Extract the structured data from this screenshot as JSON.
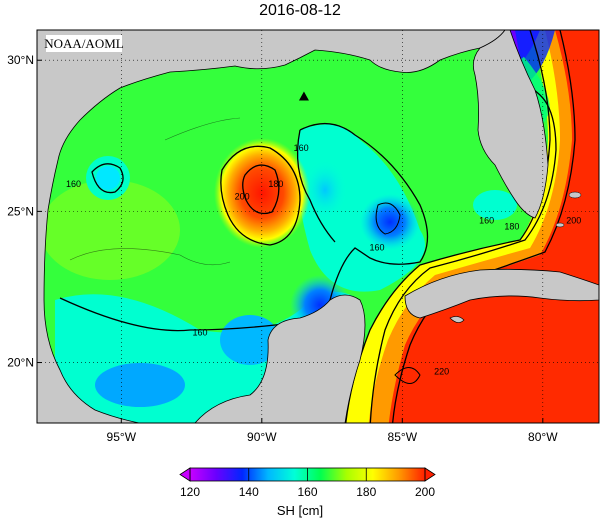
{
  "title": "2016-08-12",
  "credit": "NOAA/AOML",
  "lat_ticks": [
    {
      "value": 30,
      "label": "30°N"
    },
    {
      "value": 25,
      "label": "25°N"
    },
    {
      "value": 20,
      "label": "20°N"
    }
  ],
  "lon_ticks": [
    {
      "value": -95,
      "label": "95°W"
    },
    {
      "value": -90,
      "label": "90°W"
    },
    {
      "value": -85,
      "label": "85°W"
    },
    {
      "value": -80,
      "label": "80°W"
    }
  ],
  "extent": {
    "lon": [
      -98,
      -78
    ],
    "lat": [
      18,
      31
    ]
  },
  "contour_labels": [
    {
      "text": "160",
      "lon": -96.7,
      "lat": 25.8
    },
    {
      "text": "160",
      "lon": -88.6,
      "lat": 27.0
    },
    {
      "text": "180",
      "lon": -89.5,
      "lat": 25.8
    },
    {
      "text": "200",
      "lon": -90.7,
      "lat": 25.4
    },
    {
      "text": "160",
      "lon": -85.9,
      "lat": 23.7
    },
    {
      "text": "160",
      "lon": -92.2,
      "lat": 20.9
    },
    {
      "text": "160",
      "lon": -82.0,
      "lat": 24.6
    },
    {
      "text": "180",
      "lon": -81.1,
      "lat": 24.4
    },
    {
      "text": "200",
      "lon": -78.9,
      "lat": 24.6
    },
    {
      "text": "220",
      "lon": -83.6,
      "lat": 19.6
    }
  ],
  "colorbar": {
    "label": "SH [cm]",
    "min": 120,
    "max": 200,
    "tick_labels": [
      "120",
      "140",
      "160",
      "180",
      "200"
    ],
    "stops": [
      "#c800ff",
      "#6a00ff",
      "#0026ff",
      "#00b8ff",
      "#00ffd8",
      "#00ff50",
      "#a8ff00",
      "#ffff00",
      "#ff9a00",
      "#ff2000"
    ]
  },
  "marker": {
    "name": "triangle",
    "lon": -88.5,
    "lat": 28.8
  },
  "colors": {
    "land": "#c8c8c8",
    "coastline": "#000000",
    "contour": "#000000"
  }
}
